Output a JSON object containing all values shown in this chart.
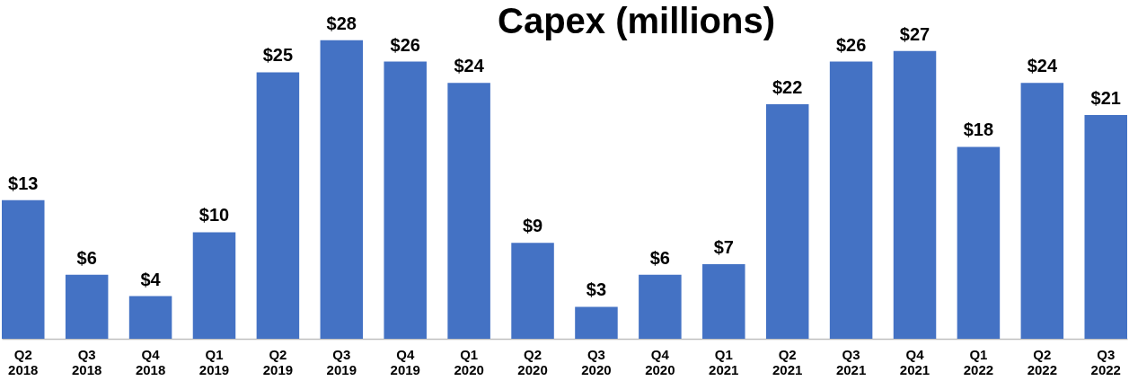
{
  "chart_data": {
    "type": "bar",
    "title": "Capex (millions)",
    "categories": [
      "Q2 2018",
      "Q3 2018",
      "Q4 2018",
      "Q1 2019",
      "Q2 2019",
      "Q3 2019",
      "Q4 2019",
      "Q1 2020",
      "Q2 2020",
      "Q3 2020",
      "Q4 2020",
      "Q1 2021",
      "Q2 2021",
      "Q3 2021",
      "Q4 2021",
      "Q1 2022",
      "Q2 2022",
      "Q3 2022"
    ],
    "values": [
      13,
      6,
      4,
      10,
      25,
      28,
      26,
      24,
      9,
      3,
      6,
      7,
      22,
      26,
      27,
      18,
      24,
      21
    ],
    "value_labels": [
      "$13",
      "$6",
      "$4",
      "$10",
      "$25",
      "$28",
      "$26",
      "$24",
      "$9",
      "$3",
      "$6",
      "$7",
      "$22",
      "$26",
      "$27",
      "$18",
      "$24",
      "$21"
    ],
    "color": "#4472c4",
    "grid": false
  }
}
